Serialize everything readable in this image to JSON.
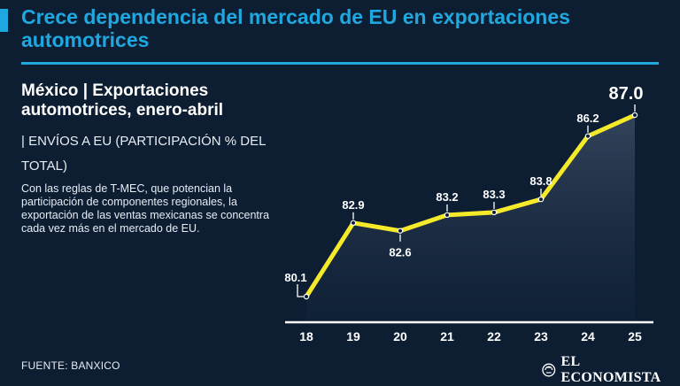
{
  "headline": "Crece dependencia del mercado de EU en exportaciones automotrices",
  "subtitle": "México | Exportaciones automotrices, enero-abril",
  "unit_note": "| ENVÍOS A EU (PARTICIPACIÓN % DEL TOTAL)",
  "description": "Con las reglas de T-MEC, que potencian la participación de componentes regionales, la exportación de las ventas mexicanas se concentra cada vez más en el mercado de EU.",
  "source": "FUENTE: BANXICO",
  "brand": "EL ECONOMISTA",
  "colors": {
    "accent": "#1fa8e0",
    "line": "#f5ea2a",
    "background": "#0d1e33"
  },
  "chart_data": {
    "type": "line",
    "title": "México | Exportaciones automotrices, enero-abril",
    "ylabel": "Envíos a EU (participación % del total)",
    "xlabel": "",
    "categories": [
      "18",
      "19",
      "20",
      "21",
      "22",
      "23",
      "24",
      "25"
    ],
    "values": [
      80.1,
      82.9,
      82.6,
      83.2,
      83.3,
      83.8,
      86.2,
      87.0
    ],
    "value_labels": [
      "80.1",
      "82.9",
      "82.6",
      "83.2",
      "83.3",
      "83.8",
      "86.2",
      "87.0"
    ],
    "ylim": [
      79.5,
      87.5
    ],
    "grid": false,
    "legend": "none"
  }
}
